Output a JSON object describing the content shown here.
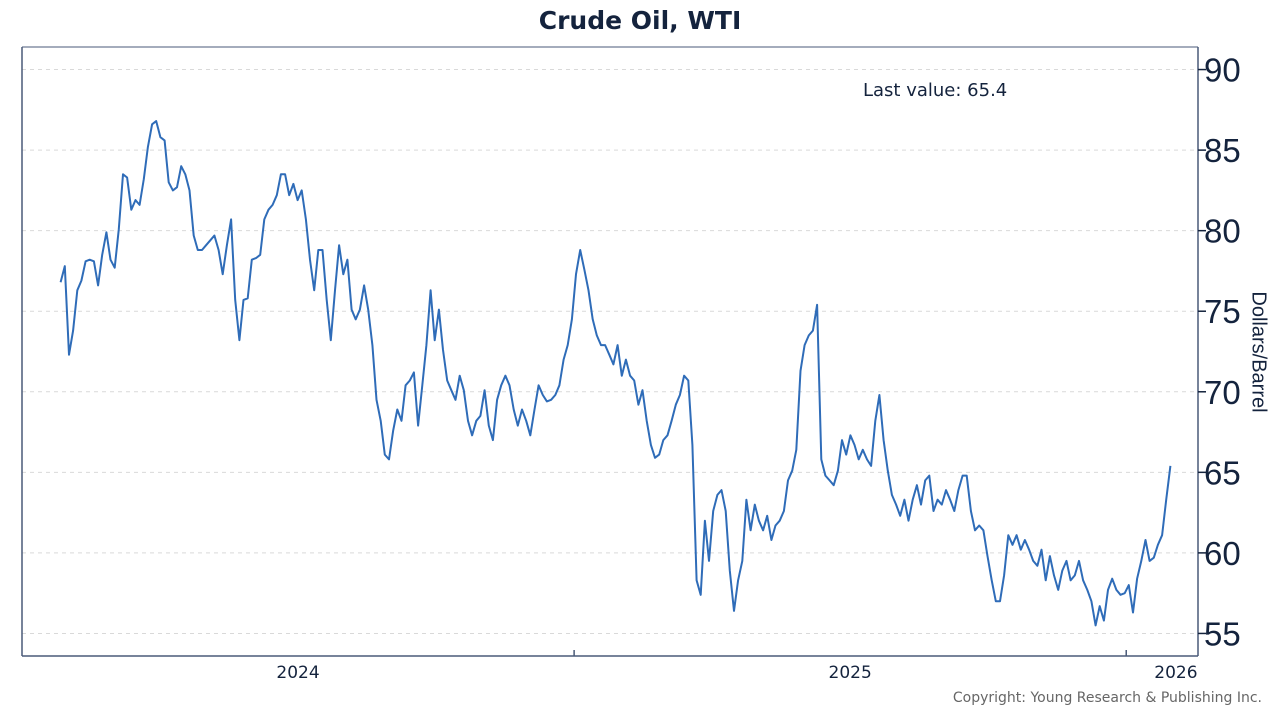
{
  "chart_data": {
    "type": "line",
    "title": "Crude Oil, WTI",
    "xlabel": "",
    "ylabel": "Dollars/Barrel",
    "annotation": "Last value: 65.4",
    "copyright": "Copyright: Young Research & Publishing Inc.",
    "ylim": [
      53.6,
      91.4
    ],
    "yticks": [
      55,
      60,
      65,
      70,
      75,
      80,
      85,
      90
    ],
    "xlim": [
      2024.0,
      2026.13
    ],
    "x_start": 2024.07,
    "x_end": 2026.08,
    "xticks": [
      2025.0,
      2026.0
    ],
    "xtick_labels": [
      {
        "label": "2024",
        "at": 2024.5
      },
      {
        "label": "2025",
        "at": 2025.5
      },
      {
        "label": "2026",
        "at": 2026.09
      }
    ],
    "grid": true,
    "line_color": "#2f6cb8",
    "series": [
      {
        "name": "WTI",
        "values": [
          76.8,
          77.8,
          72.3,
          73.8,
          76.3,
          76.9,
          78.1,
          78.2,
          78.1,
          76.6,
          78.5,
          79.9,
          78.2,
          77.7,
          80.1,
          83.5,
          83.3,
          81.3,
          81.9,
          81.6,
          83.2,
          85.2,
          86.6,
          86.8,
          85.8,
          85.6,
          83.0,
          82.5,
          82.7,
          84.0,
          83.5,
          82.5,
          79.7,
          78.8,
          78.8,
          79.1,
          79.4,
          79.7,
          78.8,
          77.3,
          79.1,
          80.7,
          75.7,
          73.2,
          75.7,
          75.8,
          78.2,
          78.3,
          78.5,
          80.7,
          81.3,
          81.6,
          82.2,
          83.5,
          83.5,
          82.2,
          82.9,
          81.9,
          82.5,
          80.7,
          78.2,
          76.3,
          78.8,
          78.8,
          75.7,
          73.2,
          76.3,
          79.1,
          77.3,
          78.2,
          75.1,
          74.5,
          75.1,
          76.6,
          75.1,
          72.9,
          69.5,
          68.2,
          66.1,
          65.8,
          67.6,
          68.9,
          68.2,
          70.4,
          70.7,
          71.2,
          67.9,
          70.4,
          72.9,
          76.3,
          73.2,
          75.1,
          72.6,
          70.7,
          70.1,
          69.5,
          71.0,
          70.1,
          68.2,
          67.3,
          68.2,
          68.5,
          70.1,
          67.9,
          67.0,
          69.5,
          70.4,
          71.0,
          70.4,
          68.9,
          67.9,
          68.9,
          68.2,
          67.3,
          68.9,
          70.4,
          69.8,
          69.4,
          69.5,
          69.8,
          70.4,
          72.0,
          72.9,
          74.5,
          77.3,
          78.8,
          77.6,
          76.3,
          74.5,
          73.5,
          72.9,
          72.9,
          72.3,
          71.7,
          72.9,
          71.0,
          72.0,
          71.0,
          70.7,
          69.2,
          70.1,
          68.2,
          66.7,
          65.9,
          66.1,
          67.0,
          67.3,
          68.2,
          69.2,
          69.8,
          71.0,
          70.7,
          66.7,
          58.3,
          57.4,
          62.0,
          59.5,
          62.6,
          63.6,
          63.9,
          62.6,
          58.9,
          56.4,
          58.3,
          59.5,
          63.3,
          61.4,
          63.0,
          62.0,
          61.4,
          62.3,
          60.8,
          61.7,
          62.0,
          62.6,
          64.5,
          65.1,
          66.4,
          71.3,
          72.9,
          73.5,
          73.8,
          75.4,
          65.8,
          64.8,
          64.5,
          64.2,
          65.1,
          67.0,
          66.1,
          67.3,
          66.7,
          65.8,
          66.4,
          65.8,
          65.4,
          68.2,
          69.8,
          67.0,
          65.1,
          63.6,
          63.0,
          62.3,
          63.3,
          62.0,
          63.3,
          64.2,
          63.0,
          64.5,
          64.8,
          62.6,
          63.3,
          63.0,
          63.9,
          63.3,
          62.6,
          63.9,
          64.8,
          64.8,
          62.6,
          61.4,
          61.7,
          61.4,
          59.8,
          58.3,
          57.0,
          57.0,
          58.6,
          61.1,
          60.5,
          61.1,
          60.2,
          60.8,
          60.2,
          59.5,
          59.2,
          60.2,
          58.3,
          59.8,
          58.6,
          57.7,
          58.9,
          59.5,
          58.3,
          58.6,
          59.5,
          58.3,
          57.7,
          57.0,
          55.5,
          56.7,
          55.8,
          57.7,
          58.4,
          57.7,
          57.4,
          57.5,
          58.0,
          56.3,
          58.4,
          59.5,
          60.8,
          59.5,
          59.7,
          60.5,
          61.1,
          63.3,
          65.4
        ]
      }
    ]
  }
}
